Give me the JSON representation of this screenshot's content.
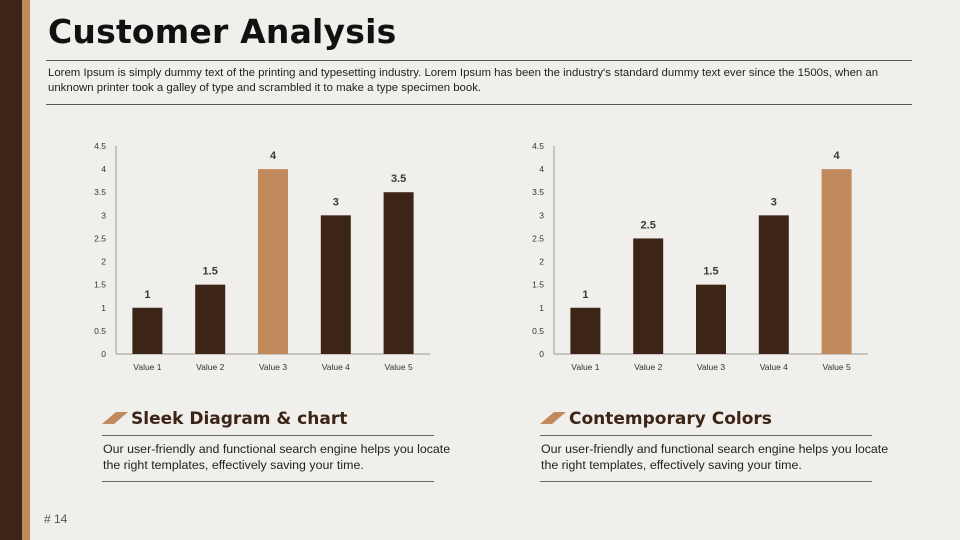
{
  "slide": {
    "title": "Customer Analysis",
    "intro": "Lorem Ipsum is simply dummy text of the printing and typesetting industry. Lorem Ipsum has been the industry's standard dummy text ever since the 1500s, when an unknown printer took a galley of type and scrambled it to make a type specimen book.",
    "page_number": "# 14"
  },
  "colors": {
    "dark_brown": "#3c2417",
    "tan": "#c18a5c",
    "background": "#f1efeb"
  },
  "features": [
    {
      "title": "Sleek Diagram & chart",
      "body": "Our user-friendly and functional search engine helps you locate the right templates,  effectively saving your time."
    },
    {
      "title": "Contemporary Colors",
      "body": "Our user-friendly and functional search engine helps you locate the right templates,  effectively saving your time."
    }
  ],
  "chart_data": [
    {
      "type": "bar",
      "categories": [
        "Value 1",
        "Value 2",
        "Value 3",
        "Value 4",
        "Value 5"
      ],
      "values": [
        1,
        1.5,
        4,
        3,
        3.5
      ],
      "highlight_index": 2,
      "ylim": [
        0,
        4.5
      ],
      "yticks": [
        0,
        0.5,
        1,
        1.5,
        2,
        2.5,
        3,
        3.5,
        4,
        4.5
      ],
      "data_labels": true,
      "grid": false,
      "legend": "none"
    },
    {
      "type": "bar",
      "categories": [
        "Value 1",
        "Value 2",
        "Value 3",
        "Value 4",
        "Value 5"
      ],
      "values": [
        1,
        2.5,
        1.5,
        3,
        4
      ],
      "highlight_index": 4,
      "ylim": [
        0,
        4.5
      ],
      "yticks": [
        0,
        0.5,
        1,
        1.5,
        2,
        2.5,
        3,
        3.5,
        4,
        4.5
      ],
      "data_labels": true,
      "grid": false,
      "legend": "none"
    }
  ]
}
